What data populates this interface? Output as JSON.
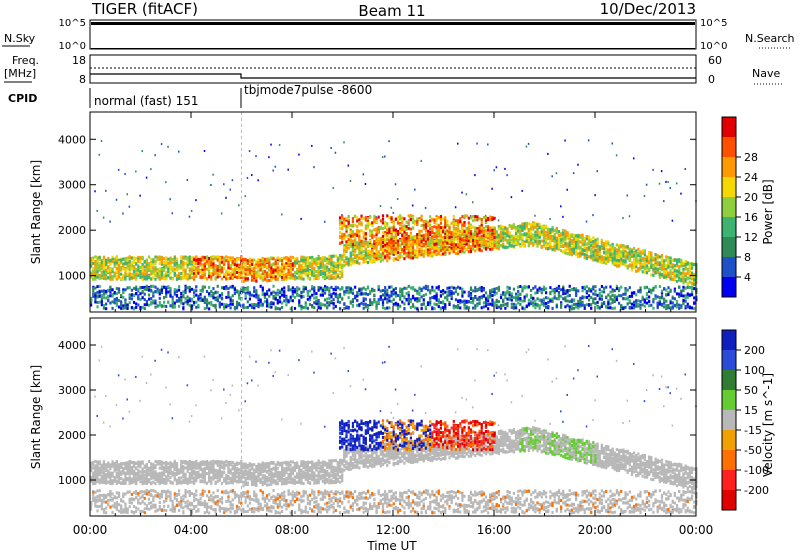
{
  "header": {
    "title": "TIGER (fitACF)",
    "beam": "Beam 11",
    "date": "10/Dec/2013"
  },
  "status_panels": {
    "nsky": {
      "label": "N.Sky",
      "top_tick": "10^5",
      "bottom_tick": "10^0"
    },
    "nsearch": {
      "label": "N.Search",
      "top_tick": "10^5",
      "bottom_tick": "10^0"
    },
    "freq": {
      "label_line1": "Freq.",
      "label_line2": "[MHz]",
      "top_tick": "18",
      "bottom_tick": "8"
    },
    "nave": {
      "label": "Nave",
      "top_tick": "60",
      "bottom_tick": "0"
    },
    "cpid": {
      "label": "CPID",
      "segments": [
        {
          "name": "normal (fast) 151",
          "start": "00:00",
          "end": "06:00"
        },
        {
          "name": "tbjmode7pulse -8600",
          "start": "06:00",
          "end": "24:00"
        }
      ]
    }
  },
  "chart_data": [
    {
      "type": "heatmap",
      "panel": "power",
      "ylabel": "Slant Range [km]",
      "xlabel": "",
      "ylim": [
        200,
        4600
      ],
      "xlim": [
        "00:00",
        "24:00"
      ],
      "y_ticks": [
        1000,
        2000,
        3000,
        4000
      ],
      "colorbar": {
        "label": "Power [dB]",
        "ticks": [
          4,
          8,
          12,
          16,
          20,
          24,
          28
        ],
        "range": [
          0,
          30
        ],
        "colors": [
          "#0000f0",
          "#1e50c8",
          "#2e8b57",
          "#3cb371",
          "#8fce3c",
          "#f5d800",
          "#ff9900",
          "#ff5000",
          "#e00000"
        ]
      }
    },
    {
      "type": "heatmap",
      "panel": "velocity",
      "ylabel": "Slant Range [km]",
      "xlabel": "Time UT",
      "ylim": [
        200,
        4600
      ],
      "xlim": [
        "00:00",
        "24:00"
      ],
      "y_ticks": [
        1000,
        2000,
        3000,
        4000
      ],
      "x_ticks": [
        "00:00",
        "04:00",
        "08:00",
        "12:00",
        "16:00",
        "20:00",
        "00:00"
      ],
      "colorbar": {
        "label": "Velocity [m s^-1]",
        "ticks": [
          "200",
          "100",
          "50",
          "15",
          "-15",
          "-50",
          "-100",
          "-200"
        ],
        "colors": [
          "#1020c0",
          "#2a4ad8",
          "#2e7d32",
          "#66cc33",
          "#b8b8b8",
          "#f0a000",
          "#ff7000",
          "#ff2020",
          "#e00000"
        ]
      }
    }
  ]
}
